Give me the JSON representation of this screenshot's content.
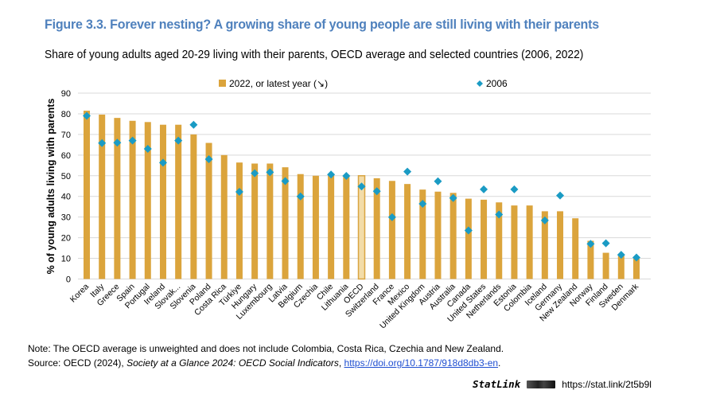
{
  "header": {
    "title": "Figure 3.3. Forever nesting? A growing share of young people are still living with their parents",
    "subtitle": "Share of young adults aged 20-29 living with their parents, OECD average and selected countries (2006, 2022)"
  },
  "colors": {
    "title": "#4f81bd",
    "bar": "#dba43c",
    "bar_highlight_fill": "#f3dca8",
    "bar_highlight_stroke": "#d9a441",
    "marker": "#1a9bc4",
    "grid": "#d9d9d9"
  },
  "chart_data": {
    "type": "bar",
    "title": "Share of young adults aged 20-29 living with their parents, OECD average and selected countries (2006, 2022)",
    "xlabel": "",
    "ylabel": "% of young adults living with parents",
    "ylim": [
      0,
      90
    ],
    "yticks": [
      0,
      10,
      20,
      30,
      40,
      50,
      60,
      70,
      80,
      90
    ],
    "grid": true,
    "legend_position": "top",
    "highlight_category": "OECD",
    "categories": [
      "Korea",
      "Italy",
      "Greece",
      "Spain",
      "Portugal",
      "Ireland",
      "Slovak...",
      "Slovenia",
      "Poland",
      "Costa Rica",
      "Türkiye",
      "Hungary",
      "Luxembourg",
      "Latvia",
      "Belgium",
      "Czechia",
      "Chile",
      "Lithuania",
      "OECD",
      "Switzerland",
      "France",
      "Mexico",
      "United Kingdom",
      "Austria",
      "Australia",
      "Canada",
      "United States",
      "Netherlands",
      "Estonia",
      "Colombia",
      "Iceland",
      "Germany",
      "New Zealand",
      "Norway",
      "Finland",
      "Sweden",
      "Denmark"
    ],
    "series": [
      {
        "name": "2022, or latest year (↘)",
        "kind": "bar",
        "values": [
          81.5,
          79.6,
          78.0,
          76.6,
          76.0,
          74.7,
          74.7,
          70.0,
          65.9,
          60.0,
          56.4,
          55.9,
          55.9,
          54.1,
          50.8,
          50.0,
          50.1,
          49.4,
          50.0,
          48.8,
          47.5,
          46.0,
          43.3,
          42.3,
          41.7,
          38.9,
          38.4,
          37.1,
          35.6,
          35.6,
          32.8,
          32.8,
          29.4,
          18.5,
          12.7,
          11.2,
          9.8
        ]
      },
      {
        "name": "2006",
        "kind": "marker",
        "values": [
          79.0,
          65.8,
          66.0,
          67.0,
          63.0,
          56.3,
          67.0,
          74.7,
          58.0,
          null,
          42.2,
          51.2,
          51.7,
          47.4,
          40.0,
          null,
          50.6,
          49.9,
          44.8,
          42.5,
          29.9,
          52.0,
          36.4,
          47.3,
          39.2,
          23.5,
          43.4,
          31.2,
          43.4,
          null,
          28.4,
          40.4,
          null,
          17.0,
          17.3,
          11.7,
          10.4
        ]
      }
    ]
  },
  "footer": {
    "note": "Note: The OECD average is unweighted and does not include Colombia, Costa Rica, Czechia and New Zealand.",
    "source_prefix": "Source: OECD (2024), ",
    "source_title": "Society at a Glance 2024: OECD Social Indicators",
    "source_sep": ", ",
    "source_link": "https://doi.org/10.1787/918d8db3-en",
    "source_suffix": ".",
    "statlink_brand": "StatLink",
    "statlink_url": "https://stat.link/2t5b9l"
  }
}
